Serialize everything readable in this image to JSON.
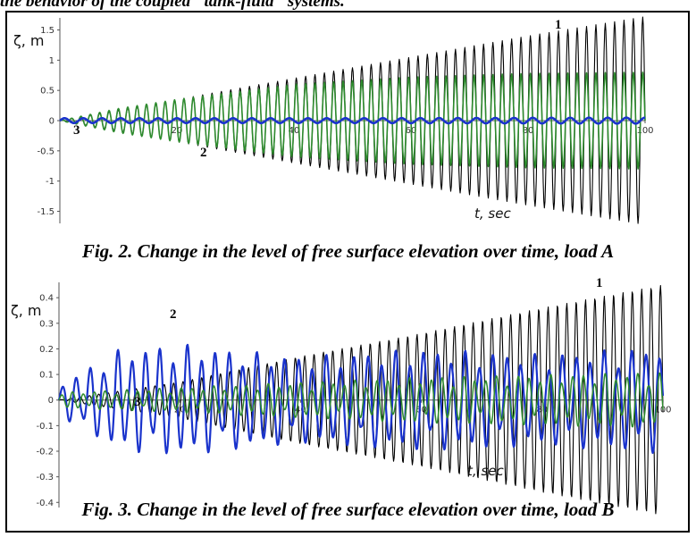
{
  "page_header": {
    "text": "the behavior of the coupled \"tank-fluid\" systems."
  },
  "captions": {
    "fig2": "Fig. 2. Change in the level of free surface elevation over time, load A",
    "fig3": "Fig. 3. Change in the level of free surface elevation over time, load B"
  },
  "chart_data": [
    {
      "type": "line",
      "ylabel": "ζ, m",
      "xlabel": "t, sec",
      "xlim": [
        0,
        100
      ],
      "ylim": [
        -1.7,
        1.7
      ],
      "xticks": [
        20,
        40,
        60,
        80,
        100
      ],
      "yticks": [
        -1.5,
        -1,
        -0.5,
        0,
        0.5,
        1,
        1.5
      ],
      "ytick_labels": [
        "-1.5",
        "-1",
        "-0.5",
        "0",
        "0.5",
        "1",
        "1.5"
      ],
      "grid": false,
      "curve_labels": [
        "1",
        "2",
        "3"
      ],
      "series": [
        {
          "color": "#000000",
          "oscillation_period_sec": 1.6,
          "amplitude_envelope": {
            "t": [
              0,
              20,
              40,
              60,
              80,
              100
            ],
            "amplitude": [
              0.0,
              0.35,
              0.7,
              1.05,
              1.4,
              1.72
            ]
          }
        },
        {
          "color": "#2e8b2e",
          "oscillation_period_sec": 1.6,
          "amplitude_envelope": {
            "t": [
              0,
              10,
              20,
              40,
              60,
              80,
              100
            ],
            "amplitude": [
              0.0,
              0.2,
              0.35,
              0.6,
              0.72,
              0.78,
              0.8
            ]
          }
        },
        {
          "color": "#1a33cc",
          "oscillation_period_sec": 3.2,
          "amplitude_envelope": {
            "t": [
              0,
              50,
              100
            ],
            "amplitude": [
              0.04,
              0.04,
              0.05
            ]
          }
        }
      ]
    },
    {
      "type": "line",
      "ylabel": "ζ, m",
      "xlabel": "t, sec",
      "xlim": [
        0,
        100
      ],
      "ylim": [
        -0.42,
        0.46
      ],
      "xticks": [
        20,
        40,
        60,
        80,
        100
      ],
      "yticks": [
        -0.4,
        -0.3,
        -0.2,
        -0.1,
        0,
        0.1,
        0.2,
        0.3,
        0.4
      ],
      "ytick_labels": [
        "-0.4",
        "-0.3",
        "-0.2",
        "-0.1",
        "0",
        "0.1",
        "0.2",
        "0.3",
        "0.4"
      ],
      "grid": false,
      "curve_labels": [
        "1",
        "2",
        "3"
      ],
      "series": [
        {
          "color": "#000000",
          "oscillation_period_sec": 1.55,
          "amplitude_envelope": {
            "t": [
              0,
              20,
              40,
              60,
              80,
              100
            ],
            "amplitude": [
              0.0,
              0.07,
              0.17,
              0.26,
              0.36,
              0.45
            ]
          }
        },
        {
          "color": "#1a33cc",
          "oscillation_period_sec": 2.3,
          "amplitude_envelope": {
            "t": [
              0,
              10,
              20,
              40,
              60,
              80,
              100
            ],
            "amplitude": [
              0.06,
              0.2,
              0.22,
              0.17,
              0.2,
              0.18,
              0.21
            ]
          }
        },
        {
          "color": "#2e8b2e",
          "oscillation_period_sec": 1.8,
          "amplitude_envelope": {
            "t": [
              0,
              20,
              40,
              60,
              80,
              100
            ],
            "amplitude": [
              0.03,
              0.05,
              0.07,
              0.09,
              0.1,
              0.11
            ]
          }
        }
      ]
    }
  ]
}
